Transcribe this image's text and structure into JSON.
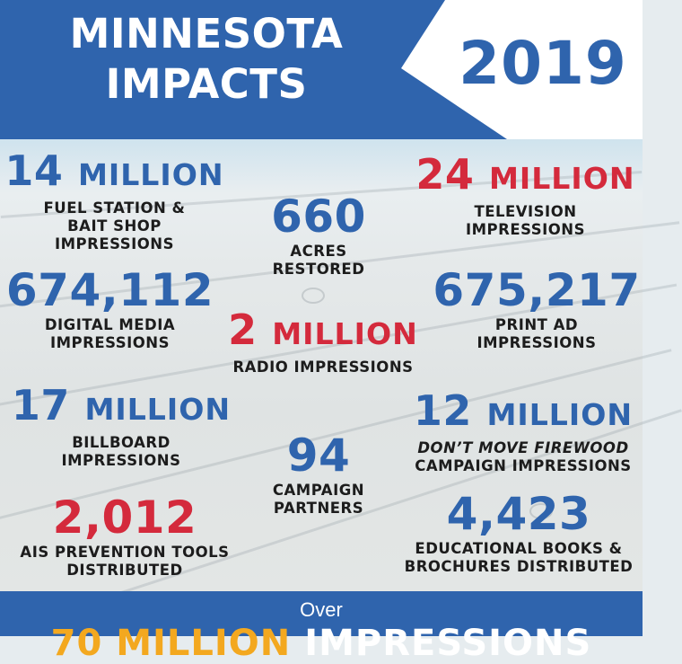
{
  "header": {
    "title_line1": "MINNESOTA",
    "title_line2": "IMPACTS",
    "year": "2019"
  },
  "stats": {
    "fuel": {
      "number": "14",
      "unit": "MILLION",
      "label_lines": [
        "FUEL STATION &",
        "BAIT SHOP",
        "IMPRESSIONS"
      ],
      "color": "#2f64ad"
    },
    "acres": {
      "number": "660",
      "label_lines": [
        "ACRES",
        "RESTORED"
      ],
      "color": "#2f64ad"
    },
    "television": {
      "number": "24",
      "unit": "MILLION",
      "label_lines": [
        "TELEVISION",
        "IMPRESSIONS"
      ],
      "color": "#d42a3c"
    },
    "digital": {
      "number": "674,112",
      "label_lines": [
        "DIGITAL MEDIA",
        "IMPRESSIONS"
      ],
      "color": "#2f64ad"
    },
    "print": {
      "number": "675,217",
      "label_lines": [
        "PRINT AD",
        "IMPRESSIONS"
      ],
      "color": "#2f64ad"
    },
    "radio": {
      "number": "2",
      "unit": "MILLION",
      "label_lines": [
        "RADIO IMPRESSIONS"
      ],
      "color": "#d42a3c"
    },
    "billboard": {
      "number": "17",
      "unit": "MILLION",
      "label_lines": [
        "BILLBOARD",
        "IMPRESSIONS"
      ],
      "color": "#2f64ad"
    },
    "partners": {
      "number": "94",
      "label_lines": [
        "CAMPAIGN",
        "PARTNERS"
      ],
      "color": "#2f64ad"
    },
    "firewood": {
      "number": "12",
      "unit": "MILLION",
      "label_italic": "DON’T MOVE FIREWOOD",
      "label_lines": [
        "CAMPAIGN IMPRESSIONS"
      ],
      "color": "#2f64ad"
    },
    "ais": {
      "number": "2,012",
      "label_lines": [
        "AIS PREVENTION  TOOLS",
        "DISTRIBUTED"
      ],
      "color": "#d42a3c"
    },
    "books": {
      "number": "4,423",
      "label_lines": [
        "EDUCATIONAL BOOKS  &",
        "BROCHURES DISTRIBUTED"
      ],
      "color": "#2f64ad"
    }
  },
  "footer": {
    "over": "Over",
    "big_number": "70 MILLION",
    "big_word": "IMPRESSIONS"
  },
  "colors": {
    "brand_blue": "#2f64ad",
    "accent_red": "#d42a3c",
    "accent_gold": "#f3a81f"
  }
}
